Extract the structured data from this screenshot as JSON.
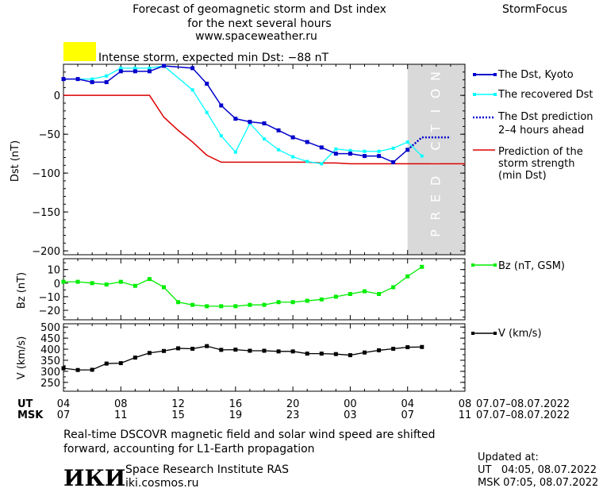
{
  "header": {
    "title_line1": "Forecast of geomagnetic storm and Dst index",
    "title_line2": "for the next several hours",
    "url": "www.spaceweather.ru",
    "brand": "StormFocus",
    "alert_text": "Intense storm, expected min Dst: −88 nT",
    "alert_color": "#ffff00"
  },
  "prediction_label": "PREDICTION",
  "legend": {
    "dst_kyoto": "The Dst, Kyoto",
    "dst_recovered": "The recovered Dst",
    "dst_pred_1": "The Dst prediction",
    "dst_pred_2": "2–4 hours ahead",
    "strength_1": "Prediction of the",
    "strength_2": "storm strength",
    "strength_3": "(min Dst)",
    "bz": "Bz (nT, GSM)",
    "v": "V (km/s)"
  },
  "axes": {
    "dst_ylabel": "Dst (nT)",
    "bz_ylabel": "Bz (nT)",
    "v_ylabel": "V (km/s)",
    "ut_label": "UT",
    "msk_label": "MSK",
    "ut_ticks": [
      "04",
      "08",
      "12",
      "16",
      "20",
      "00",
      "04",
      "08"
    ],
    "msk_ticks": [
      "07",
      "11",
      "15",
      "19",
      "23",
      "03",
      "07",
      "11"
    ],
    "ut_range": "07.07–08.07.2022",
    "msk_range": "07.07–08.07.2022"
  },
  "footer": {
    "note_line1": "Real-time DSCOVR magnetic field and solar wind speed are shifted",
    "note_line2": "forward, accounting for L1-Earth propagation",
    "logo_text": "ИКИ",
    "institute": "Space Research Institute RAS",
    "site": "iki.cosmos.ru",
    "updated_label": "Updated at:",
    "updated_ut": "UT   04:05, 08.07.2022",
    "updated_msk": "MSK 07:05, 08.07.2022"
  },
  "colors": {
    "dst_kyoto": "#0000cc",
    "dst_recovered": "#00ffff",
    "dst_prediction": "#0000cc",
    "strength": "#dd0000",
    "bz": "#00ee00",
    "v": "#000000",
    "prediction_band": "#d9d9d9"
  },
  "chart_data": [
    {
      "type": "line",
      "name": "Dst",
      "x_unit": "hours since 04 UT 07.07.2022",
      "xlim": [
        0,
        28
      ],
      "ylim": [
        -205,
        40
      ],
      "yticks": [
        0,
        -50,
        -100,
        -150,
        -200
      ],
      "prediction_band": [
        24,
        28
      ],
      "series": [
        {
          "name": "The Dst, Kyoto",
          "x": [
            0,
            1,
            2,
            3,
            4,
            5,
            6,
            7,
            9,
            10,
            11,
            12,
            13,
            14,
            15,
            16,
            17,
            18,
            19,
            20,
            21,
            22,
            23,
            24
          ],
          "y": [
            21,
            21,
            17,
            17,
            31,
            31,
            31,
            38,
            35,
            15,
            -13,
            -30,
            -34,
            -36,
            -45,
            -54,
            -60,
            -67,
            -75,
            -75,
            -78,
            -78,
            -86,
            -70
          ]
        },
        {
          "name": "The recovered Dst",
          "x": [
            0,
            1,
            2,
            3,
            4,
            5,
            6,
            7,
            9,
            10,
            11,
            12,
            13,
            14,
            15,
            16,
            17,
            18,
            19,
            20,
            21,
            22,
            23,
            24,
            25
          ],
          "y": [
            21,
            21,
            21,
            25,
            35,
            35,
            35,
            38,
            7,
            -22,
            -52,
            -73,
            -36,
            -56,
            -70,
            -79,
            -85,
            -88,
            -69,
            -71,
            -72,
            -72,
            -68,
            -60,
            -78
          ]
        },
        {
          "name": "The Dst prediction 2–4 hours ahead",
          "x": [
            24,
            25,
            26,
            27
          ],
          "y": [
            -70,
            -54,
            -54,
            -54
          ]
        },
        {
          "name": "Prediction of the storm strength (min Dst)",
          "x": [
            0,
            6,
            7,
            8,
            9,
            10,
            11,
            12,
            13,
            14,
            15,
            16,
            17,
            18,
            19,
            20,
            21,
            22,
            23,
            24,
            25,
            26,
            27,
            28
          ],
          "y": [
            0,
            0,
            -28,
            -45,
            -60,
            -77,
            -86,
            -86,
            -86,
            -86,
            -86,
            -86,
            -86,
            -87,
            -87,
            -88,
            -88,
            -88,
            -88,
            -88,
            -88,
            -88,
            -88,
            -88
          ]
        }
      ]
    },
    {
      "type": "line",
      "name": "Bz",
      "xlim": [
        0,
        28
      ],
      "ylim": [
        -27,
        18
      ],
      "yticks": [
        10,
        0,
        -10,
        -20
      ],
      "series": [
        {
          "name": "Bz (nT, GSM)",
          "x": [
            0,
            1,
            2,
            3,
            4,
            5,
            6,
            7,
            8,
            9,
            10,
            11,
            12,
            13,
            14,
            15,
            16,
            17,
            18,
            19,
            20,
            21,
            22,
            23,
            24,
            25
          ],
          "y": [
            1,
            1,
            0,
            -1,
            1,
            -2,
            3,
            -3,
            -14,
            -16,
            -17,
            -17,
            -17,
            -16,
            -16,
            -14,
            -14,
            -13,
            -12,
            -10,
            -8,
            -6,
            -8,
            -3,
            5,
            12
          ]
        }
      ]
    },
    {
      "type": "line",
      "name": "V",
      "xlim": [
        0,
        28
      ],
      "ylim": [
        210,
        515
      ],
      "yticks": [
        500,
        450,
        400,
        350,
        300,
        250
      ],
      "series": [
        {
          "name": "V (km/s)",
          "x": [
            0,
            1,
            2,
            3,
            4,
            5,
            6,
            7,
            8,
            9,
            10,
            11,
            12,
            13,
            14,
            15,
            16,
            17,
            18,
            19,
            20,
            21,
            22,
            23,
            24,
            25
          ],
          "y": [
            314,
            306,
            307,
            335,
            337,
            362,
            383,
            392,
            404,
            402,
            414,
            397,
            398,
            393,
            393,
            390,
            390,
            380,
            380,
            378,
            373,
            385,
            395,
            402,
            409,
            410
          ]
        }
      ]
    }
  ]
}
